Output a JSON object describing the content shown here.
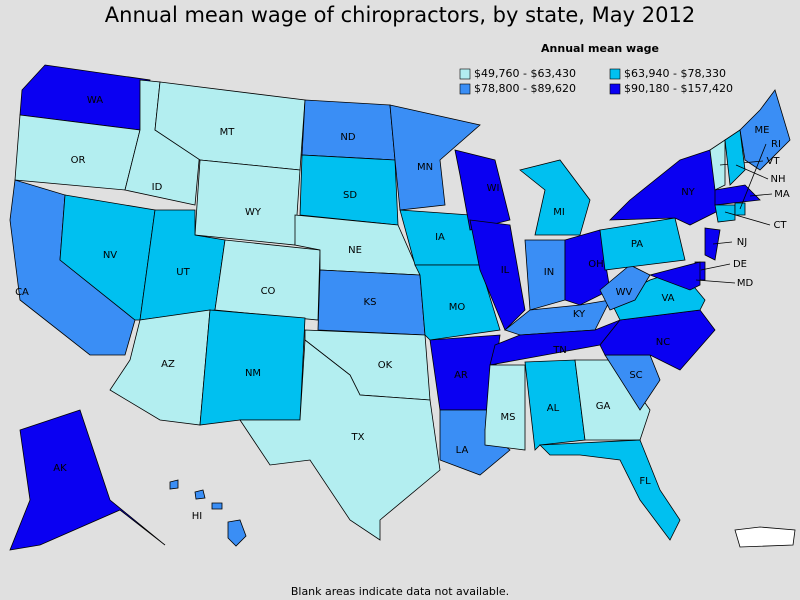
{
  "title": "Annual mean wage of chiropractors, by state, May 2012",
  "legend": {
    "title": "Annual mean wage",
    "entries": [
      {
        "label": "$49,760 - $63,430",
        "color": "#b3eef0"
      },
      {
        "label": "$63,940 - $78,330",
        "color": "#00c0f0"
      },
      {
        "label": "$78,800 - $89,620",
        "color": "#3a8ef5"
      },
      {
        "label": "$90,180 - $157,420",
        "color": "#0a00f2"
      }
    ]
  },
  "states": [
    {
      "label": "WA",
      "class": 3
    },
    {
      "label": "OR",
      "class": 0
    },
    {
      "label": "CA",
      "class": 2
    },
    {
      "label": "NV",
      "class": 1
    },
    {
      "label": "ID",
      "class": 0
    },
    {
      "label": "MT",
      "class": 0
    },
    {
      "label": "WY",
      "class": 0
    },
    {
      "label": "UT",
      "class": 1
    },
    {
      "label": "CO",
      "class": 0
    },
    {
      "label": "AZ",
      "class": 0
    },
    {
      "label": "NM",
      "class": 1
    },
    {
      "label": "ND",
      "class": 2
    },
    {
      "label": "SD",
      "class": 1
    },
    {
      "label": "NE",
      "class": 0
    },
    {
      "label": "KS",
      "class": 2
    },
    {
      "label": "OK",
      "class": 0
    },
    {
      "label": "TX",
      "class": 0
    },
    {
      "label": "MN",
      "class": 2
    },
    {
      "label": "IA",
      "class": 1
    },
    {
      "label": "MO",
      "class": 1
    },
    {
      "label": "AR",
      "class": 3
    },
    {
      "label": "LA",
      "class": 2
    },
    {
      "label": "WI",
      "class": 3
    },
    {
      "label": "IL",
      "class": 3
    },
    {
      "label": "MI",
      "class": 1
    },
    {
      "label": "IN",
      "class": 2
    },
    {
      "label": "OH",
      "class": 3
    },
    {
      "label": "KY",
      "class": 2
    },
    {
      "label": "TN",
      "class": 3
    },
    {
      "label": "MS",
      "class": 0
    },
    {
      "label": "AL",
      "class": 1
    },
    {
      "label": "GA",
      "class": 0
    },
    {
      "label": "FL",
      "class": 1
    },
    {
      "label": "SC",
      "class": 2
    },
    {
      "label": "NC",
      "class": 3
    },
    {
      "label": "VA",
      "class": 1
    },
    {
      "label": "WV",
      "class": 2
    },
    {
      "label": "PA",
      "class": 1
    },
    {
      "label": "NY",
      "class": 3
    },
    {
      "label": "ME",
      "class": 2
    },
    {
      "label": "VT",
      "class": 0
    },
    {
      "label": "NH",
      "class": 1
    },
    {
      "label": "MA",
      "class": 3
    },
    {
      "label": "CT",
      "class": 1
    },
    {
      "label": "RI",
      "class": 1
    },
    {
      "label": "NJ",
      "class": 3
    },
    {
      "label": "DE",
      "class": 3
    },
    {
      "label": "MD",
      "class": 3
    },
    {
      "label": "AK",
      "class": 3
    },
    {
      "label": "HI",
      "class": 2
    }
  ],
  "footnote": "Blank areas indicate data not available."
}
